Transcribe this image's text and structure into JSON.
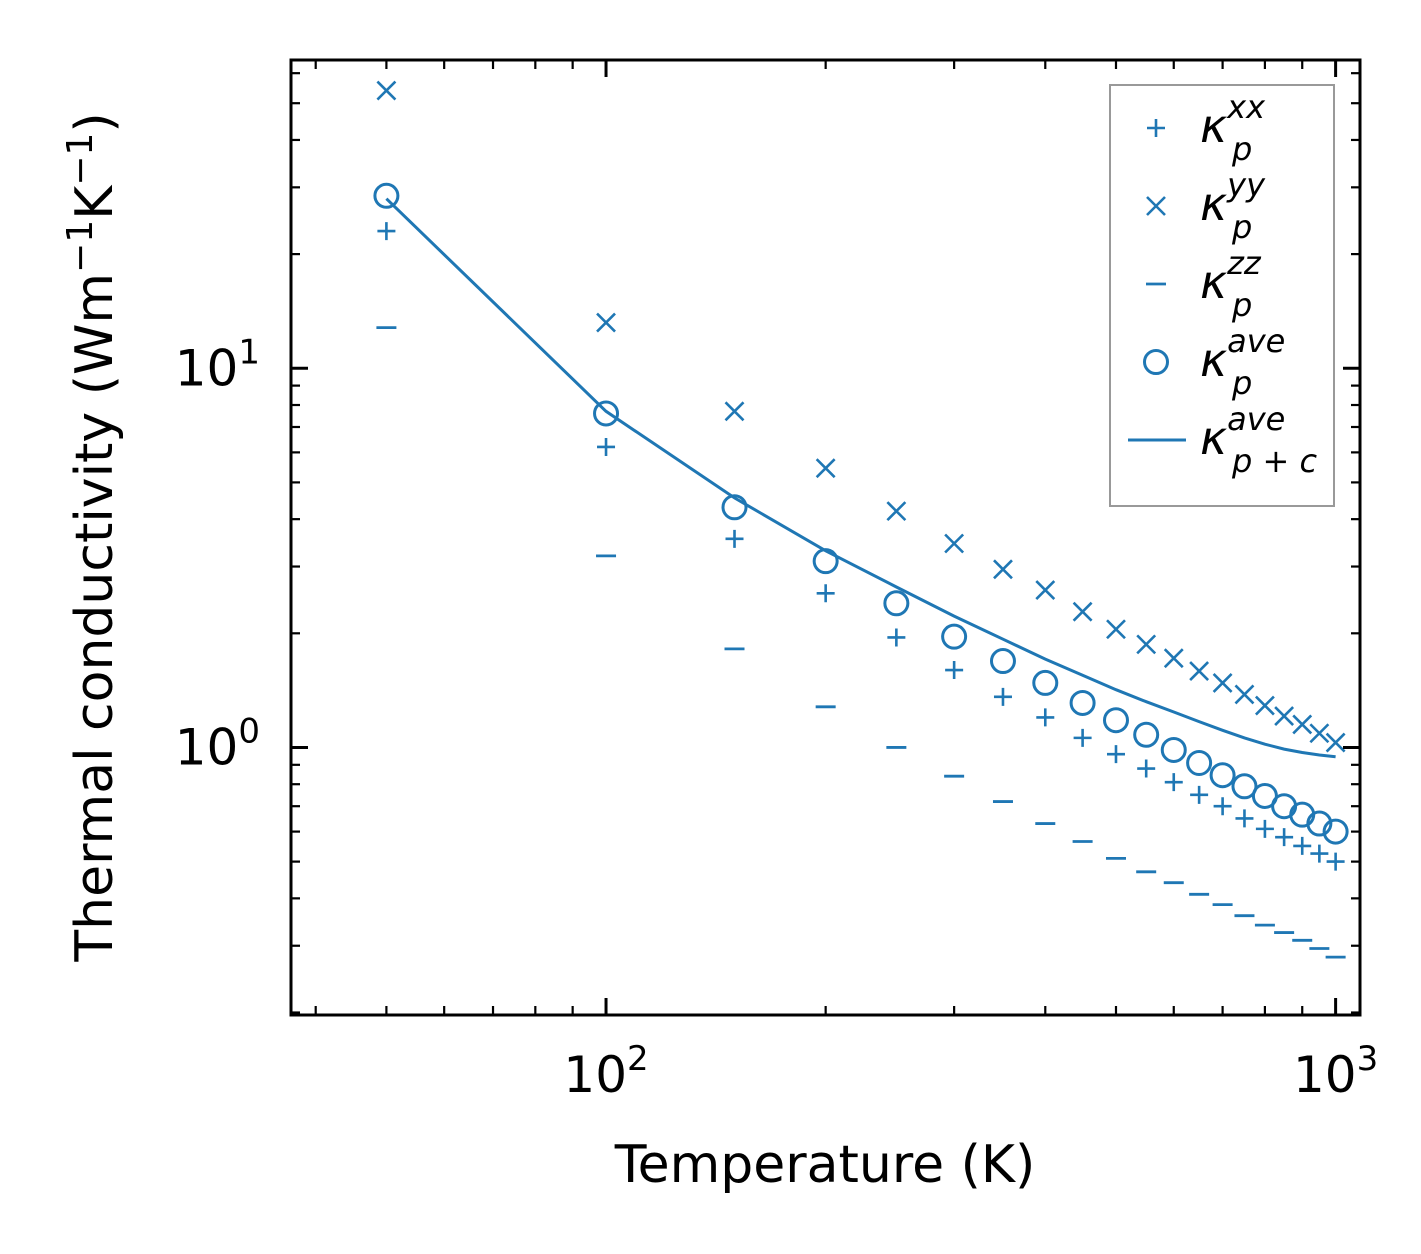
{
  "chart_data": {
    "type": "scatter",
    "title": "",
    "xlabel": "Temperature (K)",
    "ylabel": {
      "main": "Thermal conductivity (Wm",
      "sup1": "−1",
      "mid": "K",
      "sup2": "−1",
      "end": ")"
    },
    "xscale": "log",
    "yscale": "log",
    "xlim": [
      37,
      1080
    ],
    "ylim": [
      0.197,
      65
    ],
    "grid": false,
    "legend_position": "top-right",
    "color": "#1f77b4",
    "x_ticks": [
      {
        "value": 100,
        "base": "10",
        "exp": "2"
      },
      {
        "value": 1000,
        "base": "10",
        "exp": "3"
      }
    ],
    "y_ticks": [
      {
        "value": 1,
        "base": "10",
        "exp": "0"
      },
      {
        "value": 10,
        "base": "10",
        "exp": "1"
      }
    ],
    "series": [
      {
        "name": "κ_p^xx",
        "marker": "plus",
        "x": [
          50,
          100,
          150,
          200,
          250,
          300,
          350,
          400,
          450,
          500,
          550,
          600,
          650,
          700,
          750,
          800,
          850,
          900,
          950,
          1000
        ],
        "values": [
          23.0,
          6.2,
          3.55,
          2.55,
          1.95,
          1.6,
          1.36,
          1.2,
          1.06,
          0.96,
          0.88,
          0.81,
          0.75,
          0.7,
          0.65,
          0.61,
          0.58,
          0.55,
          0.525,
          0.5
        ]
      },
      {
        "name": "κ_p^yy",
        "marker": "x",
        "x": [
          50,
          100,
          150,
          200,
          250,
          300,
          350,
          400,
          450,
          500,
          550,
          600,
          650,
          700,
          750,
          800,
          850,
          900,
          950,
          1000
        ],
        "values": [
          54.0,
          13.2,
          7.7,
          5.45,
          4.2,
          3.45,
          2.95,
          2.6,
          2.28,
          2.05,
          1.87,
          1.72,
          1.59,
          1.48,
          1.38,
          1.29,
          1.21,
          1.15,
          1.09,
          1.03
        ]
      },
      {
        "name": "κ_p^zz",
        "marker": "hline",
        "x": [
          50,
          100,
          150,
          200,
          250,
          300,
          350,
          400,
          450,
          500,
          550,
          600,
          650,
          700,
          750,
          800,
          850,
          900,
          950,
          1000
        ],
        "values": [
          12.8,
          3.2,
          1.82,
          1.28,
          1.0,
          0.84,
          0.72,
          0.63,
          0.565,
          0.51,
          0.47,
          0.44,
          0.41,
          0.385,
          0.36,
          0.34,
          0.325,
          0.31,
          0.295,
          0.28
        ]
      },
      {
        "name": "κ_p^ave",
        "marker": "circle",
        "x": [
          50,
          100,
          150,
          200,
          250,
          300,
          350,
          400,
          450,
          500,
          550,
          600,
          650,
          700,
          750,
          800,
          850,
          900,
          950,
          1000
        ],
        "values": [
          28.5,
          7.6,
          4.3,
          3.1,
          2.4,
          1.96,
          1.69,
          1.48,
          1.31,
          1.18,
          1.08,
          0.985,
          0.91,
          0.845,
          0.79,
          0.745,
          0.7,
          0.665,
          0.63,
          0.6
        ]
      },
      {
        "name": "κ_p+c^ave",
        "marker": "line",
        "x": [
          50,
          100,
          150,
          200,
          250,
          300,
          350,
          400,
          450,
          500,
          550,
          600,
          650,
          700,
          750,
          800,
          850,
          900,
          950,
          1000
        ],
        "values": [
          28.0,
          7.7,
          4.55,
          3.3,
          2.65,
          2.22,
          1.93,
          1.71,
          1.55,
          1.42,
          1.32,
          1.24,
          1.17,
          1.11,
          1.06,
          1.02,
          0.99,
          0.97,
          0.955,
          0.945
        ]
      }
    ],
    "legend": [
      {
        "marker": "plus",
        "base": "κ",
        "sup": "xx",
        "sub": "p"
      },
      {
        "marker": "x",
        "base": "κ",
        "sup": "yy",
        "sub": "p"
      },
      {
        "marker": "hline",
        "base": "κ",
        "sup": "zz",
        "sub": "p"
      },
      {
        "marker": "circle",
        "base": "κ",
        "sup": "ave",
        "sub": "p"
      },
      {
        "marker": "line",
        "base": "κ",
        "sup": "ave",
        "sub": "p + c"
      }
    ]
  }
}
